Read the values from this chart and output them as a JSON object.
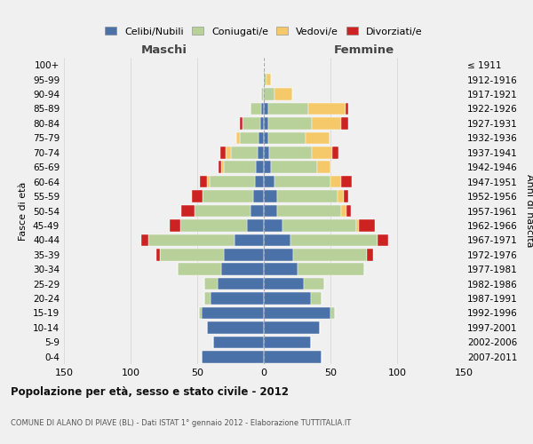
{
  "age_groups": [
    "0-4",
    "5-9",
    "10-14",
    "15-19",
    "20-24",
    "25-29",
    "30-34",
    "35-39",
    "40-44",
    "45-49",
    "50-54",
    "55-59",
    "60-64",
    "65-69",
    "70-74",
    "75-79",
    "80-84",
    "85-89",
    "90-94",
    "95-99",
    "100+"
  ],
  "birth_years": [
    "2007-2011",
    "2002-2006",
    "1997-2001",
    "1992-1996",
    "1987-1991",
    "1982-1986",
    "1977-1981",
    "1972-1976",
    "1967-1971",
    "1962-1966",
    "1957-1961",
    "1952-1956",
    "1947-1951",
    "1942-1946",
    "1937-1941",
    "1932-1936",
    "1927-1931",
    "1922-1926",
    "1917-1921",
    "1912-1916",
    "≤ 1911"
  ],
  "male": {
    "celibi": [
      47,
      38,
      43,
      47,
      40,
      35,
      32,
      30,
      22,
      13,
      10,
      8,
      7,
      6,
      5,
      4,
      3,
      2,
      0,
      0,
      0
    ],
    "coniugati": [
      0,
      0,
      0,
      2,
      5,
      10,
      33,
      48,
      65,
      50,
      42,
      38,
      34,
      24,
      20,
      14,
      13,
      8,
      2,
      0,
      0
    ],
    "vedovi": [
      0,
      0,
      0,
      0,
      0,
      0,
      0,
      0,
      0,
      0,
      0,
      0,
      2,
      2,
      4,
      3,
      0,
      0,
      0,
      0,
      0
    ],
    "divorziati": [
      0,
      0,
      0,
      0,
      0,
      0,
      0,
      3,
      5,
      8,
      10,
      8,
      5,
      2,
      4,
      0,
      2,
      0,
      0,
      0,
      0
    ]
  },
  "female": {
    "nubili": [
      43,
      35,
      42,
      50,
      35,
      30,
      25,
      22,
      20,
      14,
      10,
      10,
      8,
      5,
      4,
      3,
      3,
      3,
      0,
      0,
      0
    ],
    "coniugate": [
      0,
      0,
      0,
      3,
      8,
      15,
      50,
      55,
      65,
      55,
      48,
      45,
      42,
      35,
      32,
      28,
      33,
      30,
      8,
      2,
      0
    ],
    "vedove": [
      0,
      0,
      0,
      0,
      0,
      0,
      0,
      0,
      0,
      2,
      4,
      5,
      8,
      10,
      15,
      18,
      22,
      28,
      13,
      3,
      0
    ],
    "divorziate": [
      0,
      0,
      0,
      0,
      0,
      0,
      0,
      5,
      8,
      12,
      3,
      3,
      8,
      0,
      5,
      0,
      5,
      2,
      0,
      0,
      0
    ]
  },
  "colors": {
    "celibi": "#4a72a8",
    "coniugati": "#b8d09a",
    "vedovi": "#f5c96a",
    "divorziati": "#cc2222"
  },
  "xlim": 150,
  "title": "Popolazione per età, sesso e stato civile - 2012",
  "subtitle": "COMUNE DI ALANO DI PIAVE (BL) - Dati ISTAT 1° gennaio 2012 - Elaborazione TUTTITALIA.IT",
  "xlabel_left": "Maschi",
  "xlabel_right": "Femmine",
  "ylabel_left": "Fasce di età",
  "ylabel_right": "Anni di nascita",
  "legend_labels": [
    "Celibi/Nubili",
    "Coniugati/e",
    "Vedovi/e",
    "Divorziati/e"
  ],
  "background_color": "#f0f0f0",
  "grid_color": "#cccccc"
}
